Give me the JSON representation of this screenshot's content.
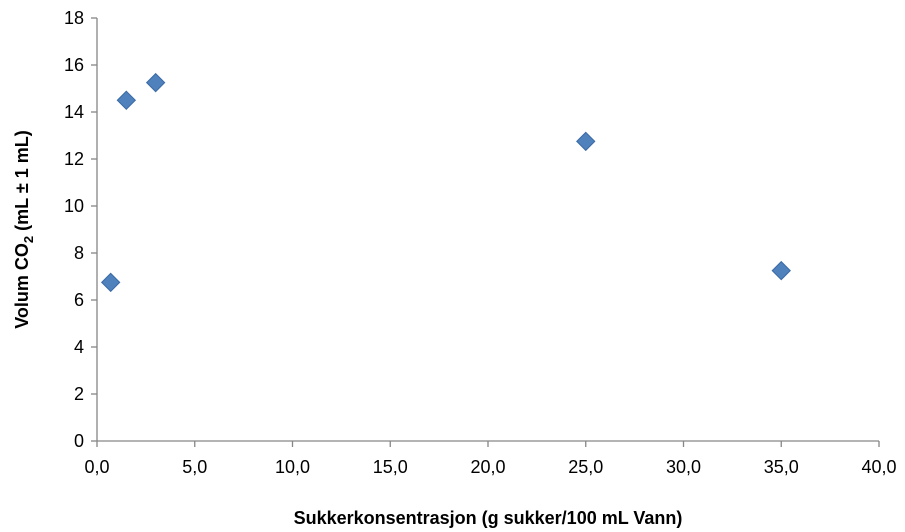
{
  "chart_data": {
    "type": "scatter",
    "xlabel": "Sukkerkonsentrasjon (g sukker/100 mL Vann)",
    "ylabel": {
      "main": "Volum CO",
      "subscript": "2",
      "unit": " (mL ± 1 mL)"
    },
    "xlim": [
      0,
      40
    ],
    "ylim": [
      0,
      18
    ],
    "xticks": [
      "0,0",
      "5,0",
      "10,0",
      "15,0",
      "20,0",
      "25,0",
      "30,0",
      "35,0",
      "40,0"
    ],
    "yticks": [
      "0",
      "2",
      "4",
      "6",
      "8",
      "10",
      "12",
      "14",
      "16",
      "18"
    ],
    "grid": false,
    "legend": "none",
    "marker": "diamond",
    "marker_color": "#4f81bd",
    "points": [
      {
        "x": 0.7,
        "y": 6.75
      },
      {
        "x": 1.5,
        "y": 14.5
      },
      {
        "x": 3.0,
        "y": 15.25
      },
      {
        "x": 25.0,
        "y": 12.75
      },
      {
        "x": 35.0,
        "y": 7.25
      }
    ]
  }
}
